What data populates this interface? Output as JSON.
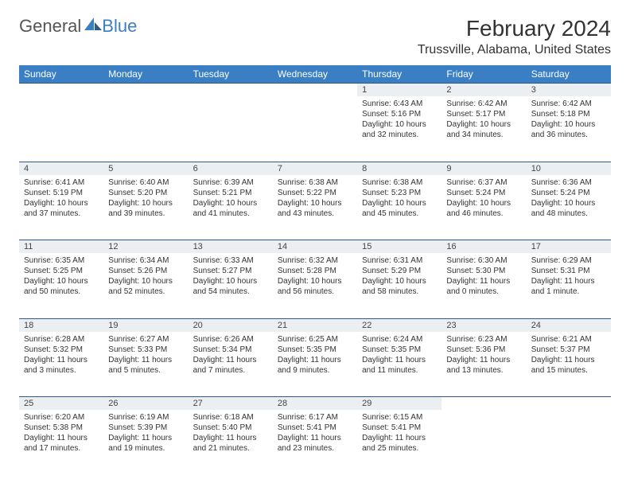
{
  "brand": {
    "word1": "General",
    "word2": "Blue"
  },
  "title": "February 2024",
  "location": "Trussville, Alabama, United States",
  "colors": {
    "header_bg": "#3a7fc4",
    "header_text": "#ffffff",
    "daynum_bg": "#eceff1",
    "border": "#2d5a8a",
    "text": "#333333"
  },
  "days_of_week": [
    "Sunday",
    "Monday",
    "Tuesday",
    "Wednesday",
    "Thursday",
    "Friday",
    "Saturday"
  ],
  "weeks": [
    [
      null,
      null,
      null,
      null,
      {
        "n": "1",
        "sr": "Sunrise: 6:43 AM",
        "ss": "Sunset: 5:16 PM",
        "dl": "Daylight: 10 hours and 32 minutes."
      },
      {
        "n": "2",
        "sr": "Sunrise: 6:42 AM",
        "ss": "Sunset: 5:17 PM",
        "dl": "Daylight: 10 hours and 34 minutes."
      },
      {
        "n": "3",
        "sr": "Sunrise: 6:42 AM",
        "ss": "Sunset: 5:18 PM",
        "dl": "Daylight: 10 hours and 36 minutes."
      }
    ],
    [
      {
        "n": "4",
        "sr": "Sunrise: 6:41 AM",
        "ss": "Sunset: 5:19 PM",
        "dl": "Daylight: 10 hours and 37 minutes."
      },
      {
        "n": "5",
        "sr": "Sunrise: 6:40 AM",
        "ss": "Sunset: 5:20 PM",
        "dl": "Daylight: 10 hours and 39 minutes."
      },
      {
        "n": "6",
        "sr": "Sunrise: 6:39 AM",
        "ss": "Sunset: 5:21 PM",
        "dl": "Daylight: 10 hours and 41 minutes."
      },
      {
        "n": "7",
        "sr": "Sunrise: 6:38 AM",
        "ss": "Sunset: 5:22 PM",
        "dl": "Daylight: 10 hours and 43 minutes."
      },
      {
        "n": "8",
        "sr": "Sunrise: 6:38 AM",
        "ss": "Sunset: 5:23 PM",
        "dl": "Daylight: 10 hours and 45 minutes."
      },
      {
        "n": "9",
        "sr": "Sunrise: 6:37 AM",
        "ss": "Sunset: 5:24 PM",
        "dl": "Daylight: 10 hours and 46 minutes."
      },
      {
        "n": "10",
        "sr": "Sunrise: 6:36 AM",
        "ss": "Sunset: 5:24 PM",
        "dl": "Daylight: 10 hours and 48 minutes."
      }
    ],
    [
      {
        "n": "11",
        "sr": "Sunrise: 6:35 AM",
        "ss": "Sunset: 5:25 PM",
        "dl": "Daylight: 10 hours and 50 minutes."
      },
      {
        "n": "12",
        "sr": "Sunrise: 6:34 AM",
        "ss": "Sunset: 5:26 PM",
        "dl": "Daylight: 10 hours and 52 minutes."
      },
      {
        "n": "13",
        "sr": "Sunrise: 6:33 AM",
        "ss": "Sunset: 5:27 PM",
        "dl": "Daylight: 10 hours and 54 minutes."
      },
      {
        "n": "14",
        "sr": "Sunrise: 6:32 AM",
        "ss": "Sunset: 5:28 PM",
        "dl": "Daylight: 10 hours and 56 minutes."
      },
      {
        "n": "15",
        "sr": "Sunrise: 6:31 AM",
        "ss": "Sunset: 5:29 PM",
        "dl": "Daylight: 10 hours and 58 minutes."
      },
      {
        "n": "16",
        "sr": "Sunrise: 6:30 AM",
        "ss": "Sunset: 5:30 PM",
        "dl": "Daylight: 11 hours and 0 minutes."
      },
      {
        "n": "17",
        "sr": "Sunrise: 6:29 AM",
        "ss": "Sunset: 5:31 PM",
        "dl": "Daylight: 11 hours and 1 minute."
      }
    ],
    [
      {
        "n": "18",
        "sr": "Sunrise: 6:28 AM",
        "ss": "Sunset: 5:32 PM",
        "dl": "Daylight: 11 hours and 3 minutes."
      },
      {
        "n": "19",
        "sr": "Sunrise: 6:27 AM",
        "ss": "Sunset: 5:33 PM",
        "dl": "Daylight: 11 hours and 5 minutes."
      },
      {
        "n": "20",
        "sr": "Sunrise: 6:26 AM",
        "ss": "Sunset: 5:34 PM",
        "dl": "Daylight: 11 hours and 7 minutes."
      },
      {
        "n": "21",
        "sr": "Sunrise: 6:25 AM",
        "ss": "Sunset: 5:35 PM",
        "dl": "Daylight: 11 hours and 9 minutes."
      },
      {
        "n": "22",
        "sr": "Sunrise: 6:24 AM",
        "ss": "Sunset: 5:35 PM",
        "dl": "Daylight: 11 hours and 11 minutes."
      },
      {
        "n": "23",
        "sr": "Sunrise: 6:23 AM",
        "ss": "Sunset: 5:36 PM",
        "dl": "Daylight: 11 hours and 13 minutes."
      },
      {
        "n": "24",
        "sr": "Sunrise: 6:21 AM",
        "ss": "Sunset: 5:37 PM",
        "dl": "Daylight: 11 hours and 15 minutes."
      }
    ],
    [
      {
        "n": "25",
        "sr": "Sunrise: 6:20 AM",
        "ss": "Sunset: 5:38 PM",
        "dl": "Daylight: 11 hours and 17 minutes."
      },
      {
        "n": "26",
        "sr": "Sunrise: 6:19 AM",
        "ss": "Sunset: 5:39 PM",
        "dl": "Daylight: 11 hours and 19 minutes."
      },
      {
        "n": "27",
        "sr": "Sunrise: 6:18 AM",
        "ss": "Sunset: 5:40 PM",
        "dl": "Daylight: 11 hours and 21 minutes."
      },
      {
        "n": "28",
        "sr": "Sunrise: 6:17 AM",
        "ss": "Sunset: 5:41 PM",
        "dl": "Daylight: 11 hours and 23 minutes."
      },
      {
        "n": "29",
        "sr": "Sunrise: 6:15 AM",
        "ss": "Sunset: 5:41 PM",
        "dl": "Daylight: 11 hours and 25 minutes."
      },
      null,
      null
    ]
  ]
}
